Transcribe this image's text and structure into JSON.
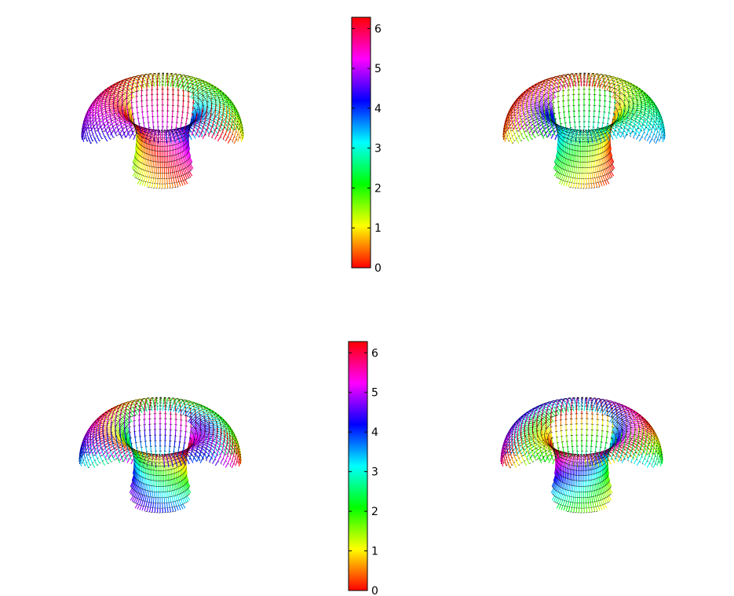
{
  "figure": {
    "panels": [
      "torus-top-left",
      "torus-top-right",
      "torus-bottom-left",
      "torus-bottom-right"
    ]
  },
  "chart_data": [
    {
      "type": "surface",
      "surface": "torus",
      "colormap": "hsv",
      "color_quantity_range": [
        0,
        6.283
      ],
      "colorbar": {
        "ticks": [
          "0",
          "1",
          "2",
          "3",
          "4",
          "5",
          "6"
        ],
        "ylim": [
          0,
          6.283
        ]
      },
      "panels": [
        {
          "position": "top-left",
          "phase_twist": 1,
          "phase_offset": 1.3
        },
        {
          "position": "top-right",
          "phase_twist": -1,
          "phase_offset": 3.4
        }
      ],
      "title": "",
      "xlabel": "",
      "ylabel": ""
    },
    {
      "type": "surface",
      "surface": "torus",
      "colormap": "hsv",
      "color_quantity_range": [
        0,
        6.283
      ],
      "colorbar": {
        "ticks": [
          "0",
          "1",
          "2",
          "3",
          "4",
          "5",
          "6"
        ],
        "ylim": [
          0,
          6.283
        ]
      },
      "panels": [
        {
          "position": "bottom-left",
          "phase_twist": 2,
          "phase_offset": 0.6
        },
        {
          "position": "bottom-right",
          "phase_twist": -2,
          "phase_offset": 2.2
        }
      ],
      "title": "",
      "xlabel": "",
      "ylabel": ""
    }
  ],
  "colors": {
    "background": "#ffffff",
    "mesh_dash": "#000000"
  }
}
